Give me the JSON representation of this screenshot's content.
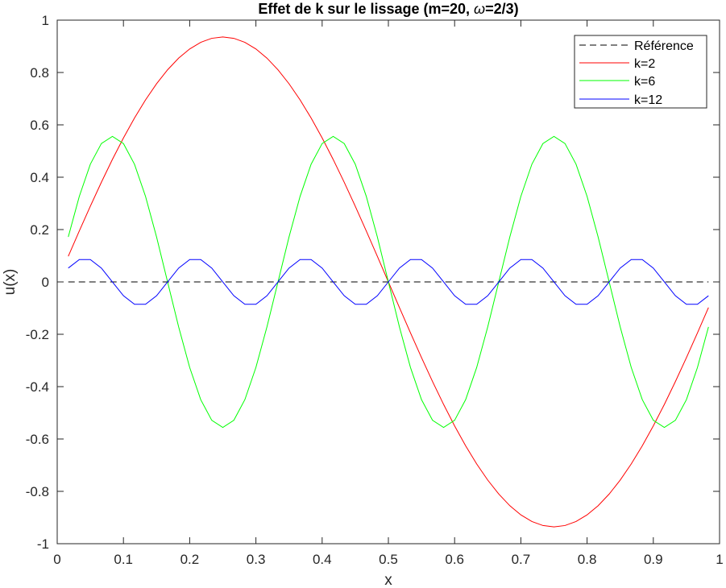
{
  "chart_data": {
    "type": "line",
    "title": "Effet de k sur le lissage (m=20, ω=2/3)",
    "title_prefix": "Effet de k sur le lissage (m=20, ",
    "title_omega": "ω",
    "title_suffix": "=2/3)",
    "xlabel": "x",
    "ylabel": "u(x)",
    "xlim": [
      0,
      1
    ],
    "ylim": [
      -1,
      1
    ],
    "xticks": [
      "0",
      "0.1",
      "0.2",
      "0.3",
      "0.4",
      "0.5",
      "0.6",
      "0.7",
      "0.8",
      "0.9",
      "1"
    ],
    "yticks": [
      "-1",
      "-0.8",
      "-0.6",
      "-0.4",
      "-0.2",
      "0",
      "0.2",
      "0.4",
      "0.6",
      "0.8",
      "1"
    ],
    "grid": false,
    "legend_position": "top-right",
    "x": {
      "from": 0.0167,
      "to": 0.9833,
      "n": 59
    },
    "series": [
      {
        "name": "Référence",
        "color": "#000000",
        "dashed": true,
        "amplitude": 0,
        "frequency": 0
      },
      {
        "name": "k=2",
        "color": "#ff0000",
        "dashed": false,
        "amplitude": 0.9357,
        "frequency": 2
      },
      {
        "name": "k=6",
        "color": "#00ff00",
        "dashed": false,
        "amplitude": 0.5558,
        "frequency": 6
      },
      {
        "name": "k=12",
        "color": "#0000ff",
        "dashed": false,
        "amplitude": 0.0898,
        "frequency": 12
      }
    ]
  }
}
